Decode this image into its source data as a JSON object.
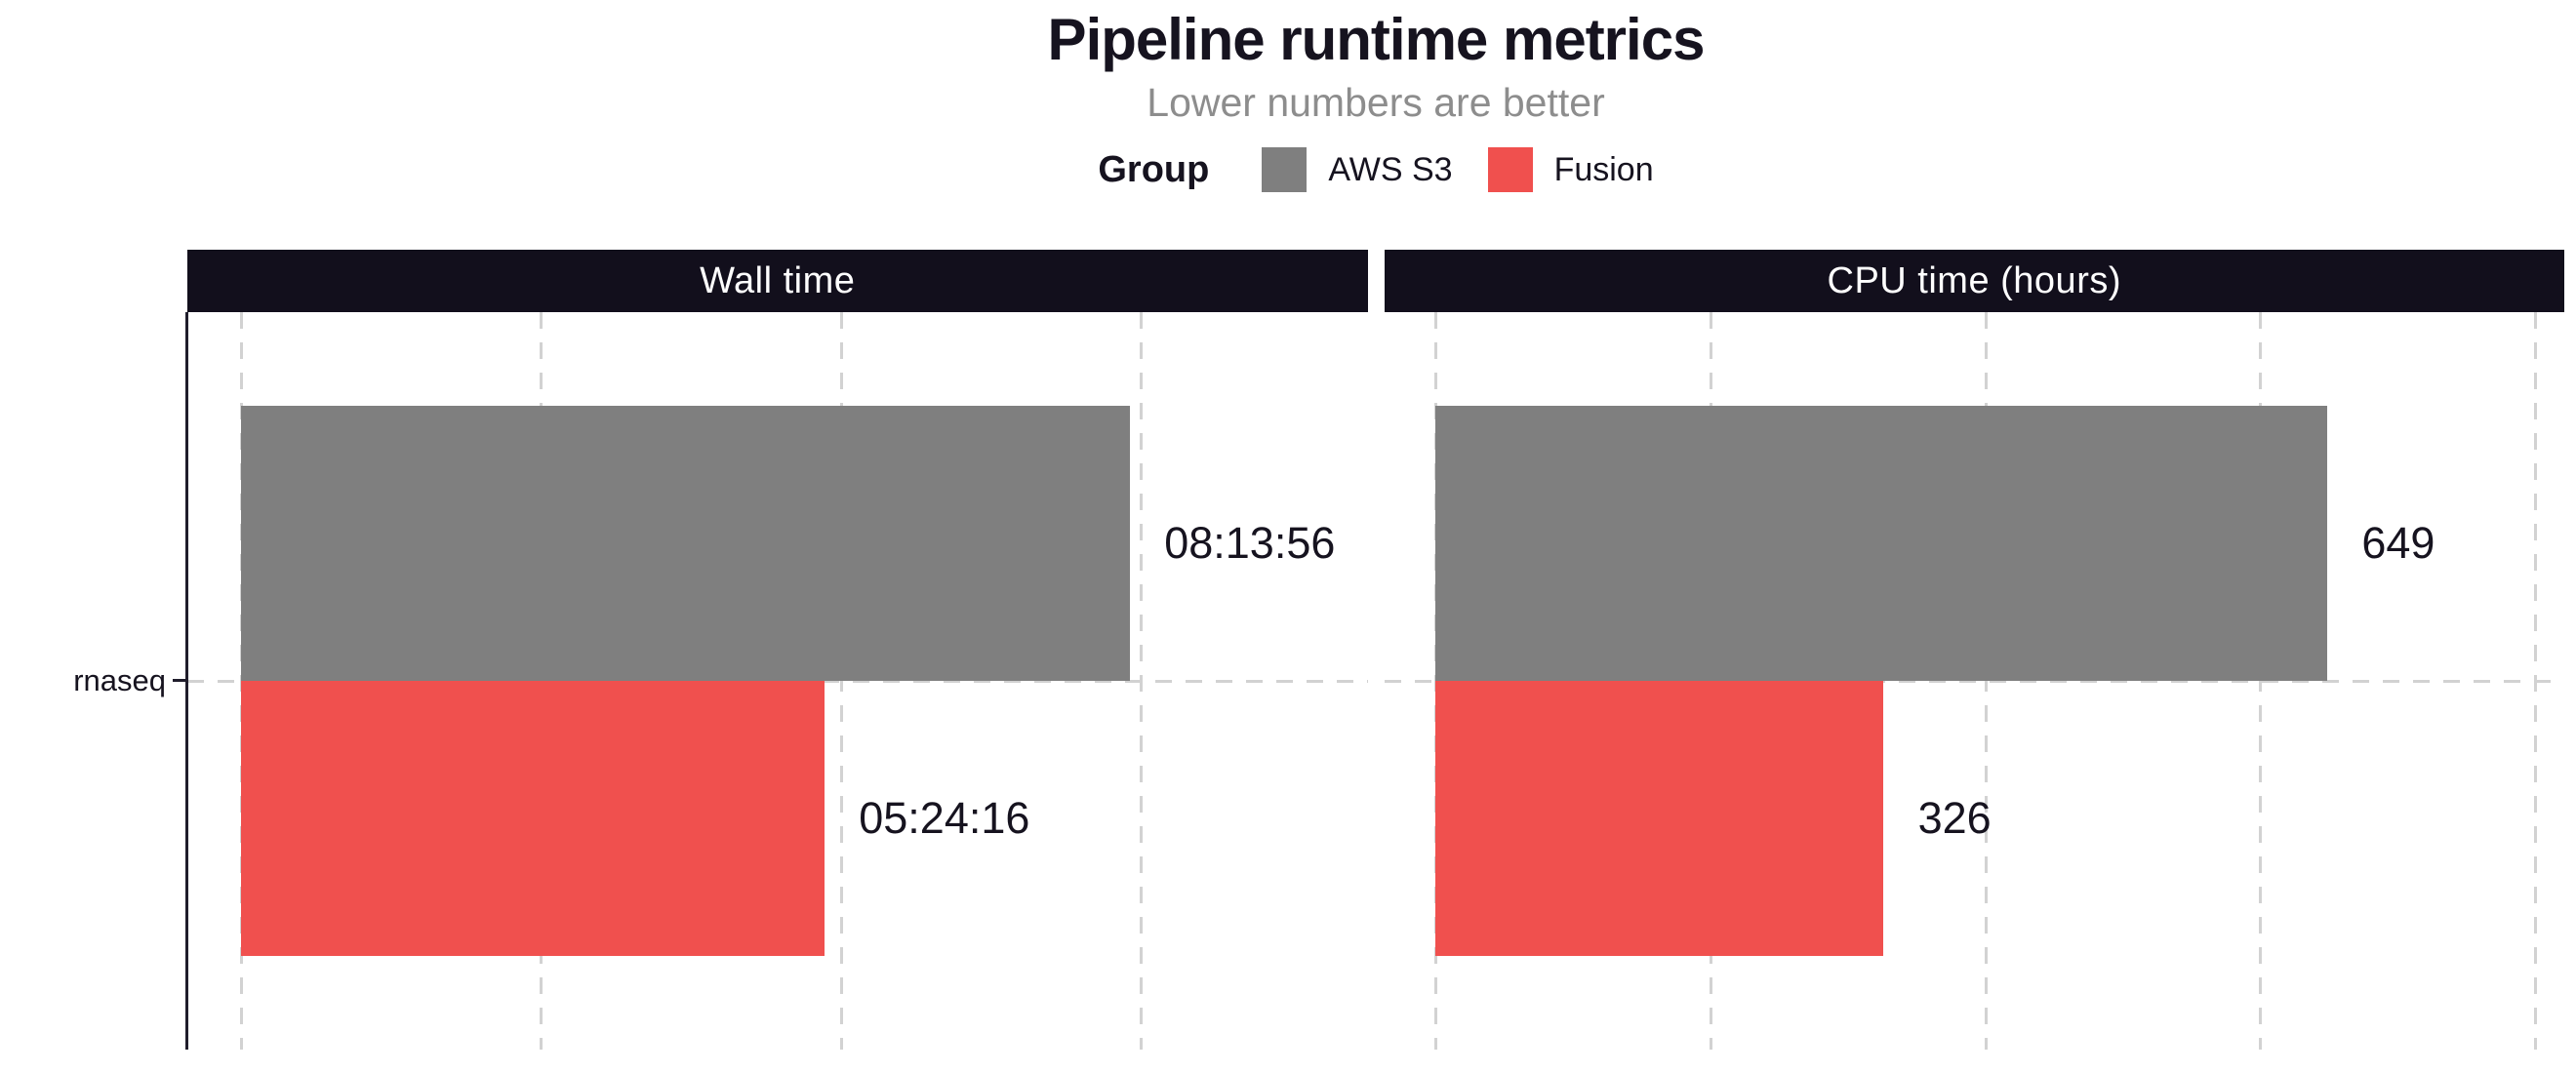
{
  "figure": {
    "title": "Pipeline runtime metrics",
    "subtitle": "Lower numbers are better",
    "legend": {
      "title": "Group",
      "items": [
        {
          "label": "AWS S3",
          "color": "#7f7f7f"
        },
        {
          "label": "Fusion",
          "color": "#f0504e"
        }
      ]
    },
    "y_axis": {
      "category_label": "rnaseq"
    }
  },
  "chart_data": {
    "type": "bar",
    "orientation": "horizontal",
    "title": "Pipeline runtime metrics",
    "subtitle": "Lower numbers are better",
    "legend_title": "Group",
    "legend_position": "top-center",
    "grid": "dashed",
    "categories": [
      "rnaseq"
    ],
    "groups": [
      "AWS S3",
      "Fusion"
    ],
    "colors": {
      "AWS S3": "#7f7f7f",
      "Fusion": "#f0504e"
    },
    "panels": [
      {
        "title": "Wall time",
        "value_format": "hh:mm:ss",
        "bars": [
          {
            "group": "AWS S3",
            "category": "rnaseq",
            "value": 29636,
            "label": "08:13:56"
          },
          {
            "group": "Fusion",
            "category": "rnaseq",
            "value": 19456,
            "label": "05:24:16"
          }
        ],
        "axis": {
          "zero_frac": 0.0455,
          "span_value": 39342,
          "grid_values": [
            0,
            10000,
            20000,
            30000
          ],
          "tick_labels_visible": false
        }
      },
      {
        "title": "CPU time (hours)",
        "value_format": "hours",
        "bars": [
          {
            "group": "AWS S3",
            "category": "rnaseq",
            "value": 649,
            "label": "649"
          },
          {
            "group": "Fusion",
            "category": "rnaseq",
            "value": 326,
            "label": "326"
          }
        ],
        "axis": {
          "zero_frac": 0.0438,
          "span_value": 859,
          "grid_values": [
            0,
            200,
            400,
            600,
            800
          ],
          "tick_labels_visible": false
        }
      }
    ],
    "bar_layout": {
      "group_top_frac": [
        0.127,
        0.5
      ],
      "bar_height_frac": 0.373,
      "label_gap_frac": 0.029
    }
  }
}
